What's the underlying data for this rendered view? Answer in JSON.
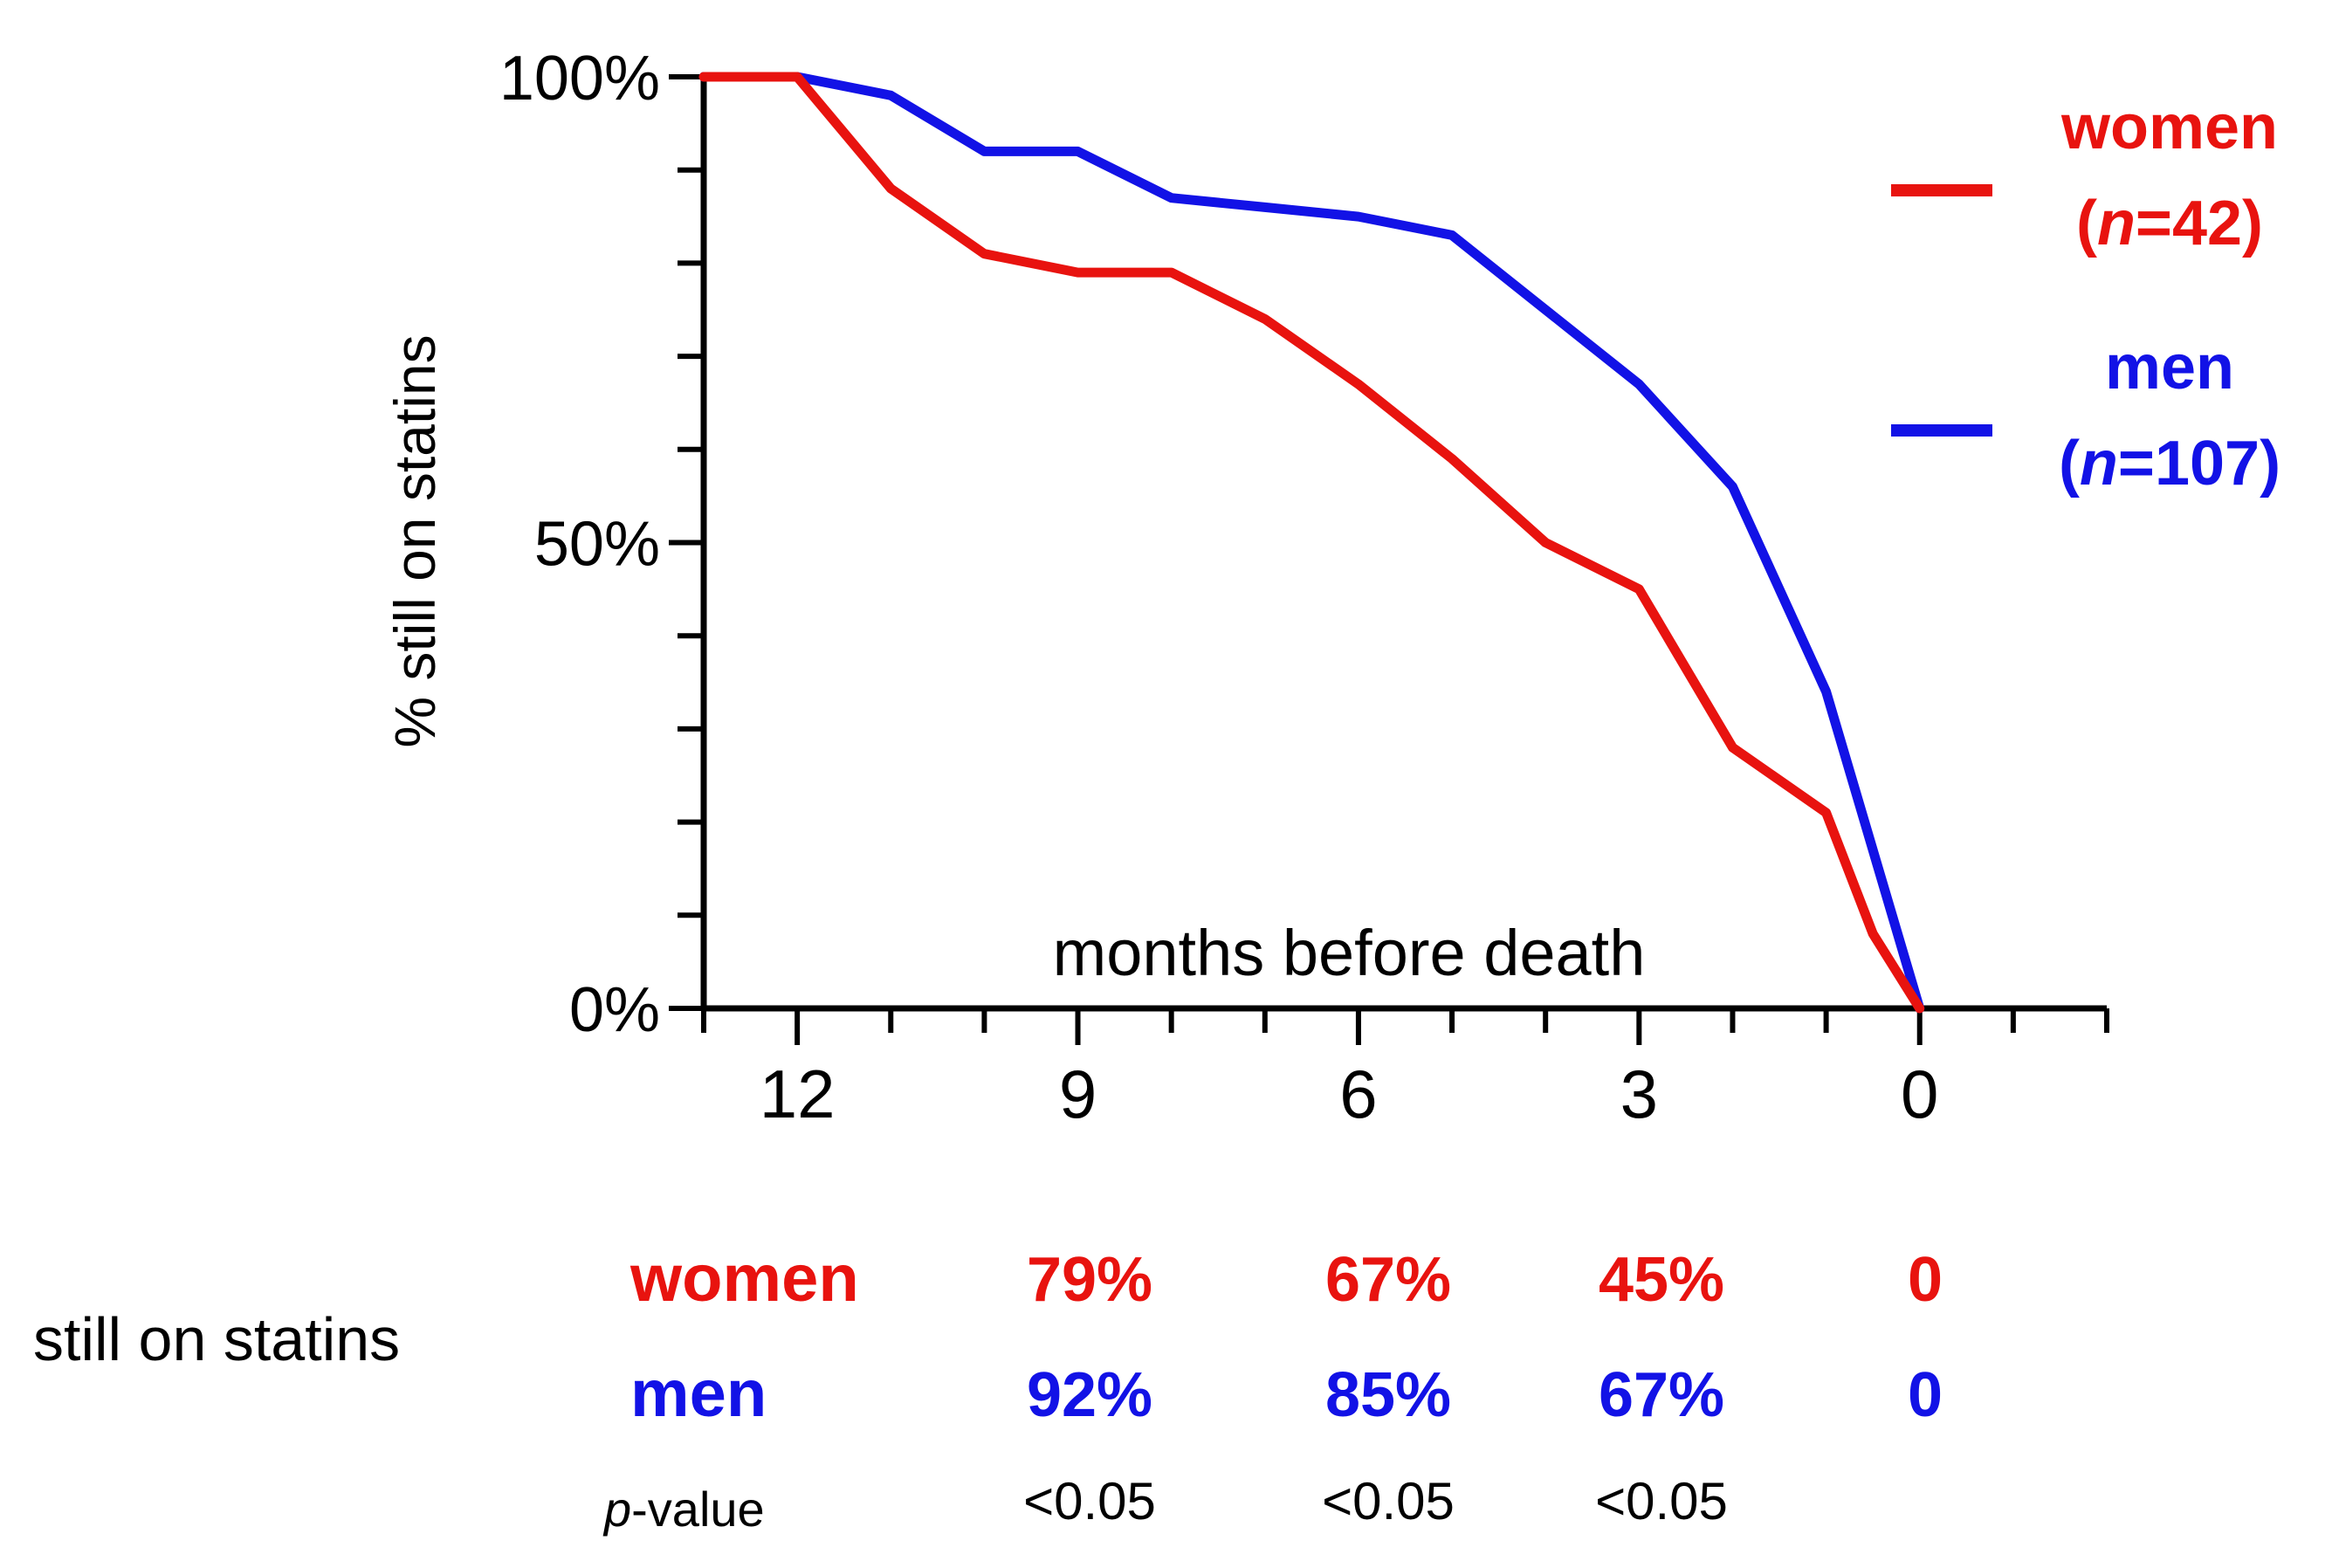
{
  "colors": {
    "women": "#e8130f",
    "men": "#1212e6",
    "axis": "#000000",
    "text": "#000000"
  },
  "chart_data": {
    "type": "line",
    "ylabel": "% still on statins",
    "xlabel": "months before death",
    "xlim": [
      13,
      -2
    ],
    "ylim": [
      0,
      100
    ],
    "x_ticks": [
      12,
      9,
      6,
      3,
      0
    ],
    "x_minor_ticks": [
      13,
      12,
      11,
      10,
      9,
      8,
      7,
      6,
      5,
      4,
      3,
      2,
      1,
      0,
      -1,
      -2
    ],
    "y_ticks": [
      {
        "value": 0,
        "label": "0%"
      },
      {
        "value": 50,
        "label": "50%"
      },
      {
        "value": 100,
        "label": "100%"
      }
    ],
    "y_minor_ticks": [
      0,
      10,
      20,
      30,
      40,
      50,
      60,
      70,
      80,
      90,
      100
    ],
    "legend_position": "right",
    "series": [
      {
        "key": "women",
        "name": "women",
        "n_label": "(n=42)",
        "points": [
          [
            13,
            100
          ],
          [
            12,
            100
          ],
          [
            11,
            88
          ],
          [
            10,
            81
          ],
          [
            9,
            79
          ],
          [
            8,
            79
          ],
          [
            7,
            74
          ],
          [
            6,
            67
          ],
          [
            5,
            59
          ],
          [
            4,
            50
          ],
          [
            3,
            45
          ],
          [
            2,
            28
          ],
          [
            1,
            21
          ],
          [
            0.5,
            8
          ],
          [
            0,
            0
          ]
        ]
      },
      {
        "key": "men",
        "name": "men",
        "n_label": "(n=107)",
        "points": [
          [
            13,
            100
          ],
          [
            12,
            100
          ],
          [
            11,
            98
          ],
          [
            10,
            92
          ],
          [
            9,
            92
          ],
          [
            8,
            87
          ],
          [
            7,
            86
          ],
          [
            6,
            85
          ],
          [
            5,
            83
          ],
          [
            4,
            75
          ],
          [
            3,
            67
          ],
          [
            2,
            56
          ],
          [
            1,
            34
          ],
          [
            0,
            0
          ]
        ]
      }
    ],
    "summary_table": {
      "row_title": "still on statins",
      "columns": [
        9,
        6,
        3,
        0
      ],
      "rows": [
        {
          "key": "women",
          "label": "women",
          "values": [
            "79%",
            "67%",
            "45%",
            "0"
          ]
        },
        {
          "key": "men",
          "label": "men",
          "values": [
            "92%",
            "85%",
            "67%",
            "0"
          ]
        },
        {
          "key": "p",
          "label_italic": "p",
          "label_rest": "-value",
          "values": [
            "<0.05",
            "<0.05",
            "<0.05",
            ""
          ]
        }
      ]
    }
  }
}
